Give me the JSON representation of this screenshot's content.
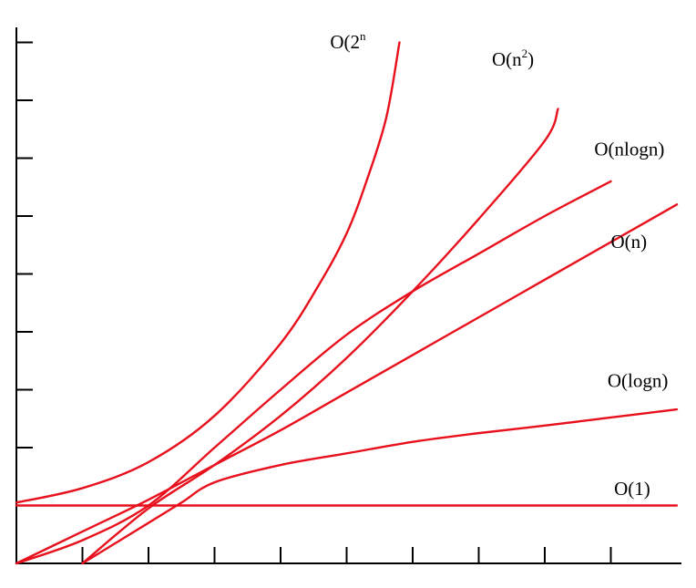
{
  "chart_data": {
    "type": "line",
    "title": "",
    "xlabel": "",
    "ylabel": "",
    "grid": false,
    "legend": "inline labels at line ends",
    "line_color": "#e8101c",
    "axis_color": "#000000",
    "x_ticks": 9,
    "y_ticks": 9,
    "series": [
      {
        "name": "O(1)",
        "label_main": "O(1)",
        "label_sup": "",
        "label_tail": "",
        "points": [
          [
            0,
            1
          ],
          [
            10,
            1
          ]
        ]
      },
      {
        "name": "O(logn)",
        "label_main": "O(logn)",
        "label_sup": "",
        "label_tail": "",
        "points": [
          [
            1,
            0
          ],
          [
            2,
            0.7
          ],
          [
            2.5,
            1.05
          ],
          [
            3,
            1.4
          ],
          [
            4,
            1.7
          ],
          [
            5,
            1.9
          ],
          [
            6,
            2.1
          ],
          [
            7,
            2.25
          ],
          [
            8,
            2.38
          ],
          [
            9,
            2.52
          ],
          [
            10,
            2.66
          ]
        ]
      },
      {
        "name": "O(n)",
        "label_main": "O(n)",
        "label_sup": "",
        "label_tail": "",
        "points": [
          [
            0,
            0
          ],
          [
            1,
            0.55
          ],
          [
            2,
            1.1
          ],
          [
            3,
            1.7
          ],
          [
            4,
            2.3
          ],
          [
            5,
            2.95
          ],
          [
            6,
            3.6
          ],
          [
            7,
            4.25
          ],
          [
            8,
            4.9
          ],
          [
            9,
            5.55
          ],
          [
            10,
            6.2
          ]
        ]
      },
      {
        "name": "O(nlogn)",
        "label_main": "O(nlogn)",
        "label_sup": "",
        "label_tail": "",
        "points": [
          [
            0,
            0
          ],
          [
            1,
            0.4
          ],
          [
            2,
            1.0
          ],
          [
            3,
            2.0
          ],
          [
            4,
            3.0
          ],
          [
            5,
            3.95
          ],
          [
            6,
            4.7
          ],
          [
            7,
            5.35
          ],
          [
            8,
            6.0
          ],
          [
            9,
            6.6
          ]
        ]
      },
      {
        "name": "O(n2)",
        "label_main": "O(n",
        "label_sup": "2",
        "label_tail": ")",
        "points": [
          [
            1,
            0
          ],
          [
            2,
            0.95
          ],
          [
            3,
            1.7
          ],
          [
            4,
            2.55
          ],
          [
            5,
            3.55
          ],
          [
            6,
            4.7
          ],
          [
            7,
            5.95
          ],
          [
            8,
            7.3
          ],
          [
            8.2,
            7.85
          ]
        ]
      },
      {
        "name": "O(2n)",
        "label_main": "O(2",
        "label_sup": "n",
        "label_tail": "",
        "points": [
          [
            0,
            1.05
          ],
          [
            1,
            1.3
          ],
          [
            2,
            1.75
          ],
          [
            3,
            2.55
          ],
          [
            4,
            3.8
          ],
          [
            4.6,
            4.85
          ],
          [
            5,
            5.7
          ],
          [
            5.3,
            6.6
          ],
          [
            5.6,
            7.7
          ],
          [
            5.8,
            9.0
          ]
        ]
      }
    ],
    "label_anchors": {
      "O(1)": [
        9.05,
        1.18
      ],
      "O(logn)": [
        8.95,
        3.05
      ],
      "O(n)": [
        9.0,
        5.45
      ],
      "O(nlogn)": [
        8.75,
        7.05
      ],
      "O(n2)": [
        7.2,
        8.6
      ],
      "O(2n)": [
        4.75,
        8.9
      ]
    }
  }
}
